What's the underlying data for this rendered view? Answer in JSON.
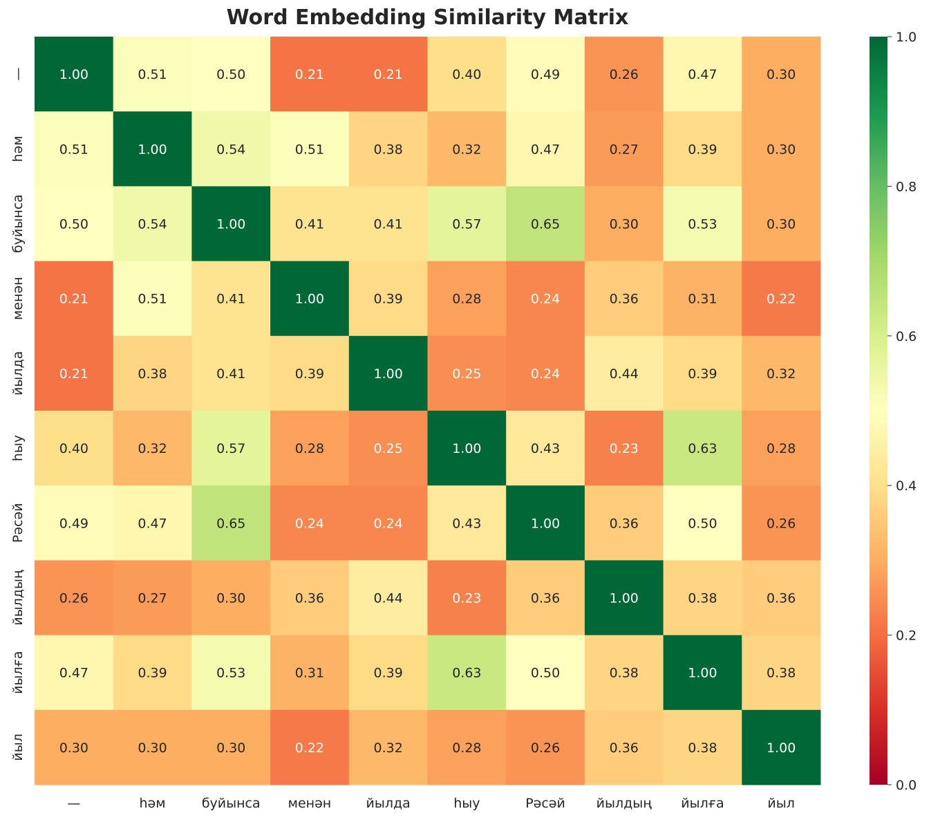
{
  "chart_data": {
    "type": "heatmap",
    "title": "Word Embedding Similarity Matrix",
    "x_labels": [
      "—",
      "һәм",
      "буйынса",
      "менән",
      "йылда",
      "һыу",
      "Рәсәй",
      "йылдың",
      "йылға",
      "йыл"
    ],
    "y_labels": [
      "—",
      "һәм",
      "буйынса",
      "менән",
      "йылда",
      "һыу",
      "Рәсәй",
      "йылдың",
      "йылға",
      "йыл"
    ],
    "values": [
      [
        1.0,
        0.51,
        0.5,
        0.21,
        0.21,
        0.4,
        0.49,
        0.26,
        0.47,
        0.3
      ],
      [
        0.51,
        1.0,
        0.54,
        0.51,
        0.38,
        0.32,
        0.47,
        0.27,
        0.39,
        0.3
      ],
      [
        0.5,
        0.54,
        1.0,
        0.41,
        0.41,
        0.57,
        0.65,
        0.3,
        0.53,
        0.3
      ],
      [
        0.21,
        0.51,
        0.41,
        1.0,
        0.39,
        0.28,
        0.24,
        0.36,
        0.31,
        0.22
      ],
      [
        0.21,
        0.38,
        0.41,
        0.39,
        1.0,
        0.25,
        0.24,
        0.44,
        0.39,
        0.32
      ],
      [
        0.4,
        0.32,
        0.57,
        0.28,
        0.25,
        1.0,
        0.43,
        0.23,
        0.63,
        0.28
      ],
      [
        0.49,
        0.47,
        0.65,
        0.24,
        0.24,
        0.43,
        1.0,
        0.36,
        0.5,
        0.26
      ],
      [
        0.26,
        0.27,
        0.3,
        0.36,
        0.44,
        0.23,
        0.36,
        1.0,
        0.38,
        0.36
      ],
      [
        0.47,
        0.39,
        0.53,
        0.31,
        0.39,
        0.63,
        0.5,
        0.38,
        1.0,
        0.38
      ],
      [
        0.3,
        0.3,
        0.3,
        0.22,
        0.32,
        0.28,
        0.26,
        0.36,
        0.38,
        1.0
      ]
    ],
    "colormap": "RdYlGn",
    "colormap_stops": [
      "#a50026",
      "#d73027",
      "#f46d43",
      "#fdae61",
      "#fee08b",
      "#ffffbf",
      "#d9ef8b",
      "#a6d96a",
      "#66bd63",
      "#1a9850",
      "#006837"
    ],
    "vmin": 0.0,
    "vmax": 1.0,
    "colorbar_ticks": [
      "0.0",
      "0.2",
      "0.4",
      "0.6",
      "0.8",
      "1.0"
    ],
    "annotation_format": "2 decimals",
    "grid": false
  }
}
